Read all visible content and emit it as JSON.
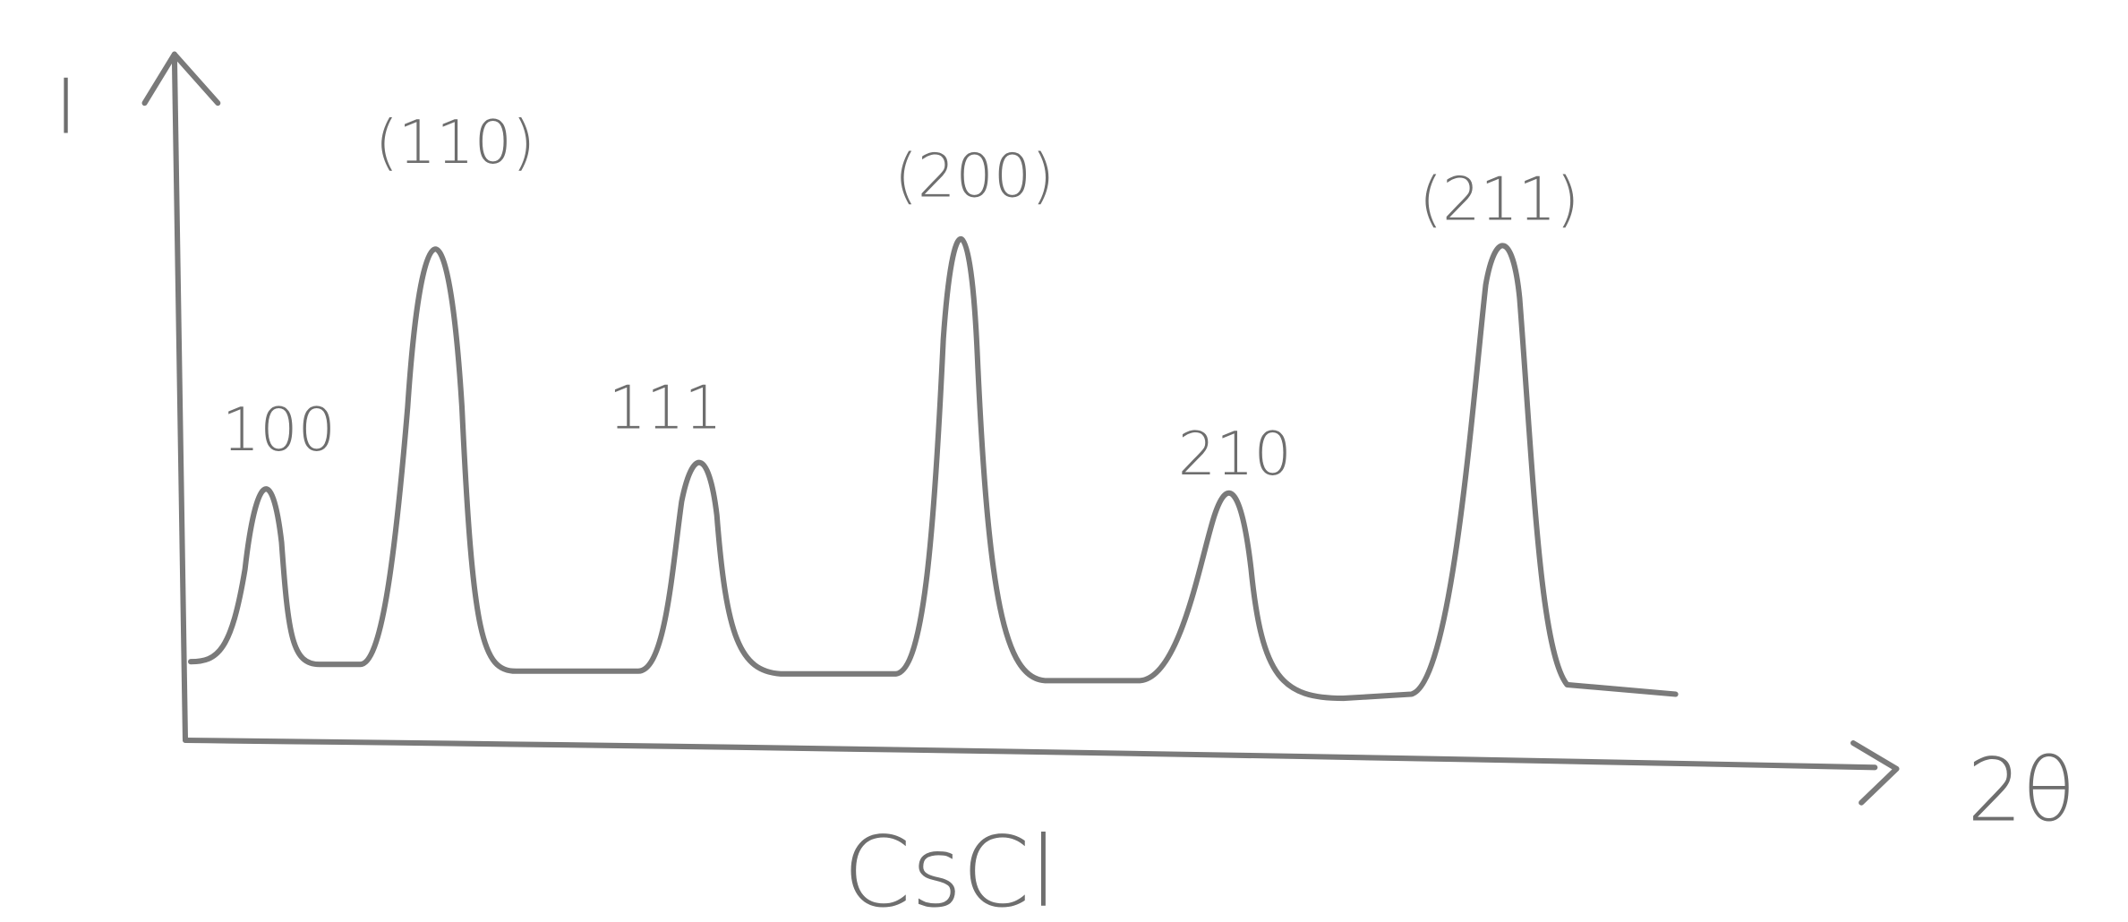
{
  "axis_labels": {
    "y": "I",
    "x": "2θ"
  },
  "caption": "CsCl",
  "peaks": [
    {
      "label": "100"
    },
    {
      "label": "(110)"
    },
    {
      "label": "111"
    },
    {
      "label": "(200)"
    },
    {
      "label": "210"
    },
    {
      "label": "(211)"
    }
  ]
}
